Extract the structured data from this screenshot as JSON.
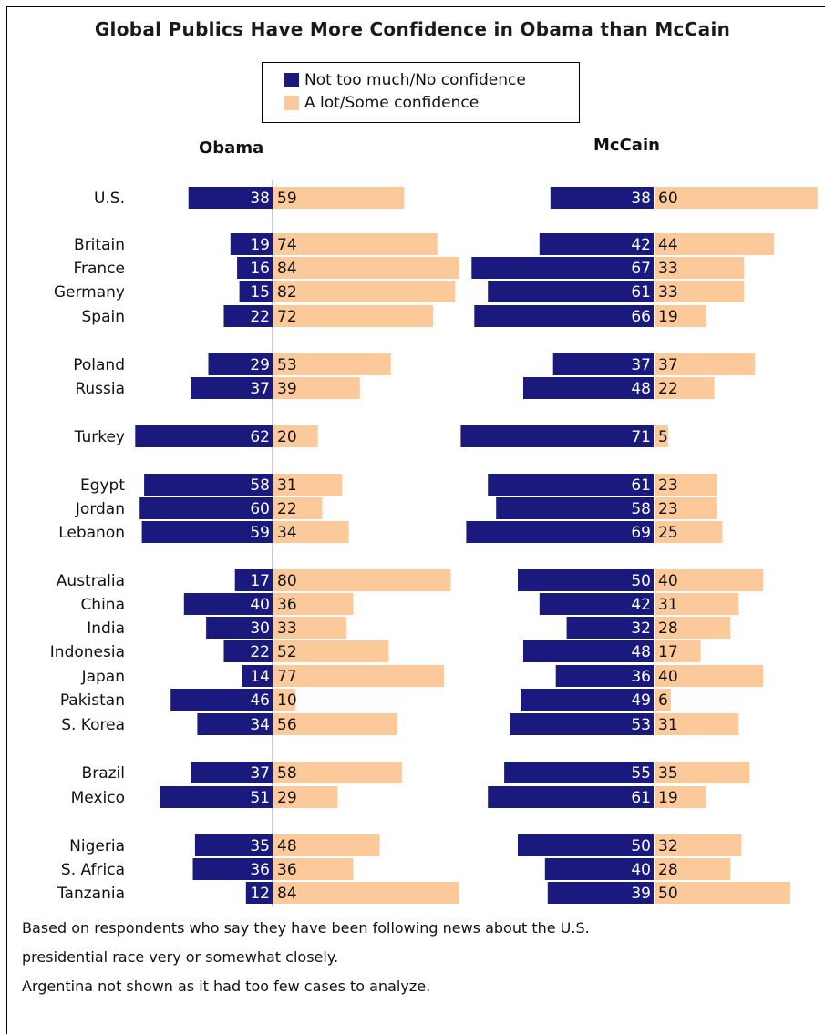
{
  "title": "Global Publics Have More Confidence in Obama than McCain",
  "legend": {
    "no_conf": {
      "label": "Not too much/No confidence",
      "color": "#1a1a7e"
    },
    "conf": {
      "label": "A lot/Some confidence",
      "color": "#fbc99a"
    }
  },
  "notes": [
    "Based on respondents who say they have been following news about the U.S.",
    "presidential race very or somewhat closely.",
    "Argentina not shown as it had too few cases to analyze."
  ],
  "chart_data": [
    {
      "type": "bar",
      "title": "Obama",
      "series": [
        {
          "name": "Not too much/No confidence",
          "values": [
            38,
            19,
            16,
            15,
            22,
            29,
            37,
            62,
            58,
            60,
            59,
            17,
            40,
            30,
            22,
            14,
            46,
            34,
            37,
            51,
            35,
            36,
            12
          ]
        },
        {
          "name": "A lot/Some confidence",
          "values": [
            59,
            74,
            84,
            82,
            72,
            53,
            39,
            20,
            31,
            22,
            34,
            80,
            36,
            33,
            52,
            77,
            10,
            56,
            58,
            29,
            48,
            36,
            84
          ]
        }
      ],
      "categories": [
        "U.S.",
        "Britain",
        "France",
        "Germany",
        "Spain",
        "Poland",
        "Russia",
        "Turkey",
        "Egypt",
        "Jordan",
        "Lebanon",
        "Australia",
        "China",
        "India",
        "Indonesia",
        "Japan",
        "Pakistan",
        "S. Korea",
        "Brazil",
        "Mexico",
        "Nigeria",
        "S. Africa",
        "Tanzania"
      ]
    },
    {
      "type": "bar",
      "title": "McCain",
      "series": [
        {
          "name": "Not too much/No confidence",
          "values": [
            38,
            42,
            67,
            61,
            66,
            37,
            48,
            71,
            61,
            58,
            69,
            50,
            42,
            32,
            48,
            36,
            49,
            53,
            55,
            61,
            50,
            40,
            39
          ]
        },
        {
          "name": "A lot/Some confidence",
          "values": [
            60,
            44,
            33,
            33,
            19,
            37,
            22,
            5,
            23,
            23,
            25,
            40,
            31,
            28,
            17,
            40,
            6,
            31,
            35,
            19,
            32,
            28,
            50
          ]
        }
      ],
      "categories": [
        "U.S.",
        "Britain",
        "France",
        "Germany",
        "Spain",
        "Poland",
        "Russia",
        "Turkey",
        "Egypt",
        "Jordan",
        "Lebanon",
        "Australia",
        "China",
        "India",
        "Indonesia",
        "Japan",
        "Pakistan",
        "S. Korea",
        "Brazil",
        "Mexico",
        "Nigeria",
        "S. Africa",
        "Tanzania"
      ]
    }
  ]
}
